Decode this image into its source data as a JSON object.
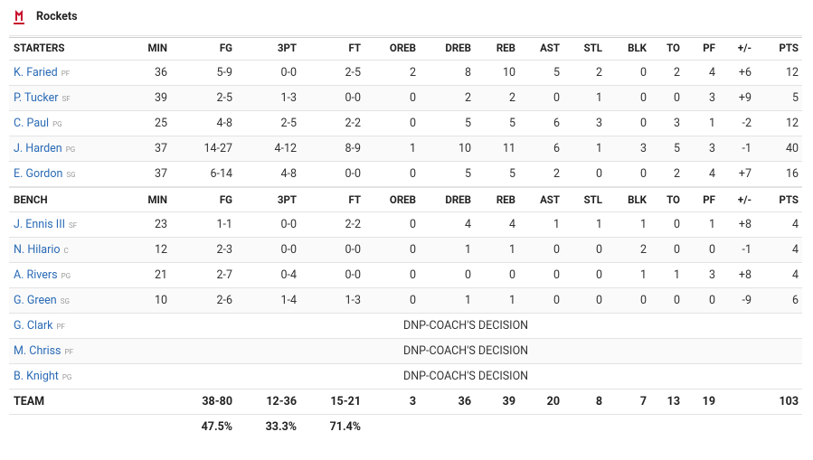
{
  "team_name": "Rockets",
  "starters": {
    "headers": [
      "STARTERS",
      "MIN",
      "FG",
      "3PT",
      "FT",
      "OREB",
      "DREB",
      "REB",
      "AST",
      "STL",
      "BLK",
      "TO",
      "PF",
      "+/-",
      "PTS"
    ],
    "rows": [
      {
        "name": "K. Faried",
        "pos": "PF",
        "stats": [
          36,
          "5-9",
          "0-0",
          "2-5",
          2,
          8,
          10,
          5,
          2,
          0,
          2,
          4,
          "+6",
          12
        ]
      },
      {
        "name": "P. Tucker",
        "pos": "SF",
        "stats": [
          39,
          "2-5",
          "1-3",
          "0-0",
          0,
          2,
          2,
          0,
          1,
          0,
          0,
          3,
          "+9",
          5
        ]
      },
      {
        "name": "C. Paul",
        "pos": "PG",
        "stats": [
          25,
          "4-8",
          "2-5",
          "2-2",
          0,
          5,
          5,
          6,
          3,
          0,
          3,
          1,
          "-2",
          12
        ]
      },
      {
        "name": "J. Harden",
        "pos": "PG",
        "stats": [
          37,
          "14-27",
          "4-12",
          "8-9",
          1,
          10,
          11,
          6,
          1,
          3,
          5,
          3,
          "-1",
          40
        ]
      },
      {
        "name": "E. Gordon",
        "pos": "SG",
        "stats": [
          37,
          "6-14",
          "4-8",
          "0-0",
          0,
          5,
          5,
          2,
          0,
          0,
          2,
          4,
          "+7",
          16
        ]
      }
    ]
  },
  "bench": {
    "headers": [
      "BENCH",
      "MIN",
      "FG",
      "3PT",
      "FT",
      "OREB",
      "DREB",
      "REB",
      "AST",
      "STL",
      "BLK",
      "TO",
      "PF",
      "+/-",
      "PTS"
    ],
    "rows": [
      {
        "name": "J. Ennis III",
        "pos": "SF",
        "stats": [
          23,
          "1-1",
          "0-0",
          "2-2",
          0,
          4,
          4,
          1,
          1,
          1,
          0,
          1,
          "+8",
          4
        ]
      },
      {
        "name": "N. Hilario",
        "pos": "C",
        "stats": [
          12,
          "2-3",
          "0-0",
          "0-0",
          0,
          1,
          1,
          0,
          0,
          2,
          0,
          0,
          "-1",
          4
        ]
      },
      {
        "name": "A. Rivers",
        "pos": "PG",
        "stats": [
          21,
          "2-7",
          "0-4",
          "0-0",
          0,
          0,
          0,
          0,
          0,
          1,
          1,
          3,
          "+8",
          4
        ]
      },
      {
        "name": "G. Green",
        "pos": "SG",
        "stats": [
          10,
          "2-6",
          "1-4",
          "1-3",
          0,
          1,
          1,
          0,
          0,
          0,
          0,
          0,
          "-9",
          6
        ]
      },
      {
        "name": "G. Clark",
        "pos": "PF",
        "note": "DNP-COACH'S DECISION"
      },
      {
        "name": "M. Chriss",
        "pos": "PF",
        "note": "DNP-COACH'S DECISION"
      },
      {
        "name": "B. Knight",
        "pos": "PG",
        "note": "DNP-COACH'S DECISION"
      }
    ]
  },
  "team": {
    "label": "TEAM",
    "totals": [
      null,
      "38-80",
      "12-36",
      "15-21",
      3,
      36,
      39,
      20,
      8,
      7,
      13,
      19,
      null,
      103
    ],
    "percentages": [
      null,
      "47.5%",
      "33.3%",
      "71.4%"
    ]
  }
}
